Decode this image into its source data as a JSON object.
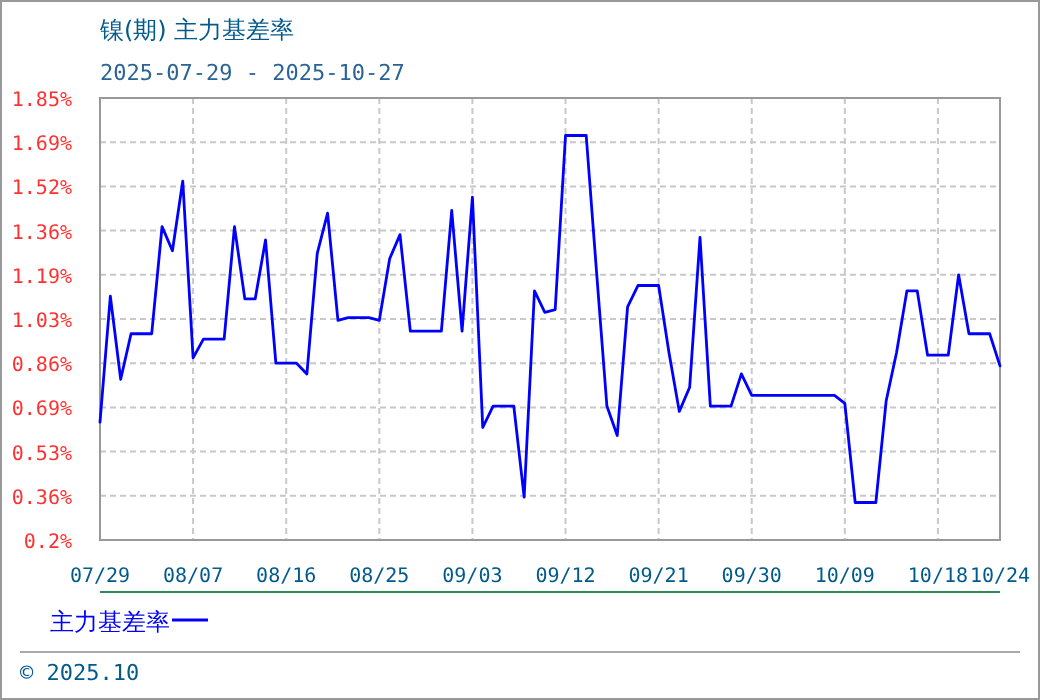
{
  "chart_data": {
    "type": "line",
    "title": "镍(期) 主力基差率",
    "subtitle": "2025-07-29 - 2025-10-27",
    "xlim": [
      "2025-07-29",
      "2025-10-24"
    ],
    "xticks": [
      {
        "value": "2025-07-29",
        "label": "07/29"
      },
      {
        "value": "2025-08-07",
        "label": "08/07"
      },
      {
        "value": "2025-08-16",
        "label": "08/16"
      },
      {
        "value": "2025-08-25",
        "label": "08/25"
      },
      {
        "value": "2025-09-03",
        "label": "09/03"
      },
      {
        "value": "2025-09-12",
        "label": "09/12"
      },
      {
        "value": "2025-09-21",
        "label": "09/21"
      },
      {
        "value": "2025-09-30",
        "label": "09/30"
      },
      {
        "value": "2025-10-09",
        "label": "10/09"
      },
      {
        "value": "2025-10-18",
        "label": "10/18"
      },
      {
        "value": "2025-10-24",
        "label": "10/24"
      }
    ],
    "ylim": [
      0.2,
      1.85
    ],
    "yticks": [
      {
        "value": 0.2,
        "label": "0.2%"
      },
      {
        "value": 0.365,
        "label": "0.36%"
      },
      {
        "value": 0.53,
        "label": "0.53%"
      },
      {
        "value": 0.695,
        "label": "0.69%"
      },
      {
        "value": 0.86,
        "label": "0.86%"
      },
      {
        "value": 1.025,
        "label": "1.03%"
      },
      {
        "value": 1.19,
        "label": "1.19%"
      },
      {
        "value": 1.355,
        "label": "1.36%"
      },
      {
        "value": 1.52,
        "label": "1.52%"
      },
      {
        "value": 1.685,
        "label": "1.69%"
      },
      {
        "value": 1.85,
        "label": "1.85%"
      }
    ],
    "grid": true,
    "legend": "bottom left",
    "annotations": [
      "© 2025.10"
    ],
    "series": [
      {
        "name": "主力基差率",
        "color": "#0000ff",
        "x": [
          "2025-07-29",
          "2025-07-30",
          "2025-07-31",
          "2025-08-01",
          "2025-08-03",
          "2025-08-04",
          "2025-08-05",
          "2025-08-06",
          "2025-08-07",
          "2025-08-08",
          "2025-08-10",
          "2025-08-11",
          "2025-08-12",
          "2025-08-13",
          "2025-08-14",
          "2025-08-15",
          "2025-08-17",
          "2025-08-18",
          "2025-08-19",
          "2025-08-20",
          "2025-08-21",
          "2025-08-22",
          "2025-08-24",
          "2025-08-25",
          "2025-08-26",
          "2025-08-27",
          "2025-08-28",
          "2025-08-31",
          "2025-09-01",
          "2025-09-02",
          "2025-09-03",
          "2025-09-04",
          "2025-09-05",
          "2025-09-07",
          "2025-09-08",
          "2025-09-09",
          "2025-09-10",
          "2025-09-11",
          "2025-09-12",
          "2025-09-14",
          "2025-09-15",
          "2025-09-16",
          "2025-09-17",
          "2025-09-18",
          "2025-09-19",
          "2025-09-21",
          "2025-09-22",
          "2025-09-23",
          "2025-09-24",
          "2025-09-25",
          "2025-09-26",
          "2025-09-28",
          "2025-09-29",
          "2025-09-30",
          "2025-10-08",
          "2025-10-09",
          "2025-10-10",
          "2025-10-12",
          "2025-10-13",
          "2025-10-14",
          "2025-10-15",
          "2025-10-16",
          "2025-10-17",
          "2025-10-19",
          "2025-10-20",
          "2025-10-21",
          "2025-10-23",
          "2025-10-24"
        ],
        "values": [
          0.64,
          1.11,
          0.8,
          0.97,
          0.97,
          1.37,
          1.28,
          1.54,
          0.88,
          0.95,
          0.95,
          1.37,
          1.1,
          1.1,
          1.32,
          0.86,
          0.86,
          0.82,
          1.27,
          1.42,
          1.02,
          1.03,
          1.03,
          1.02,
          1.25,
          1.34,
          0.98,
          0.98,
          1.43,
          0.98,
          1.48,
          0.62,
          0.7,
          0.7,
          0.36,
          1.13,
          1.05,
          1.06,
          1.71,
          1.71,
          1.2,
          0.7,
          0.59,
          1.07,
          1.15,
          1.15,
          0.9,
          0.68,
          0.77,
          1.33,
          0.7,
          0.7,
          0.82,
          0.74,
          0.74,
          0.71,
          0.34,
          0.34,
          0.72,
          0.9,
          1.13,
          1.13,
          0.89,
          0.89,
          1.19,
          0.97,
          0.97,
          0.85
        ]
      }
    ]
  }
}
